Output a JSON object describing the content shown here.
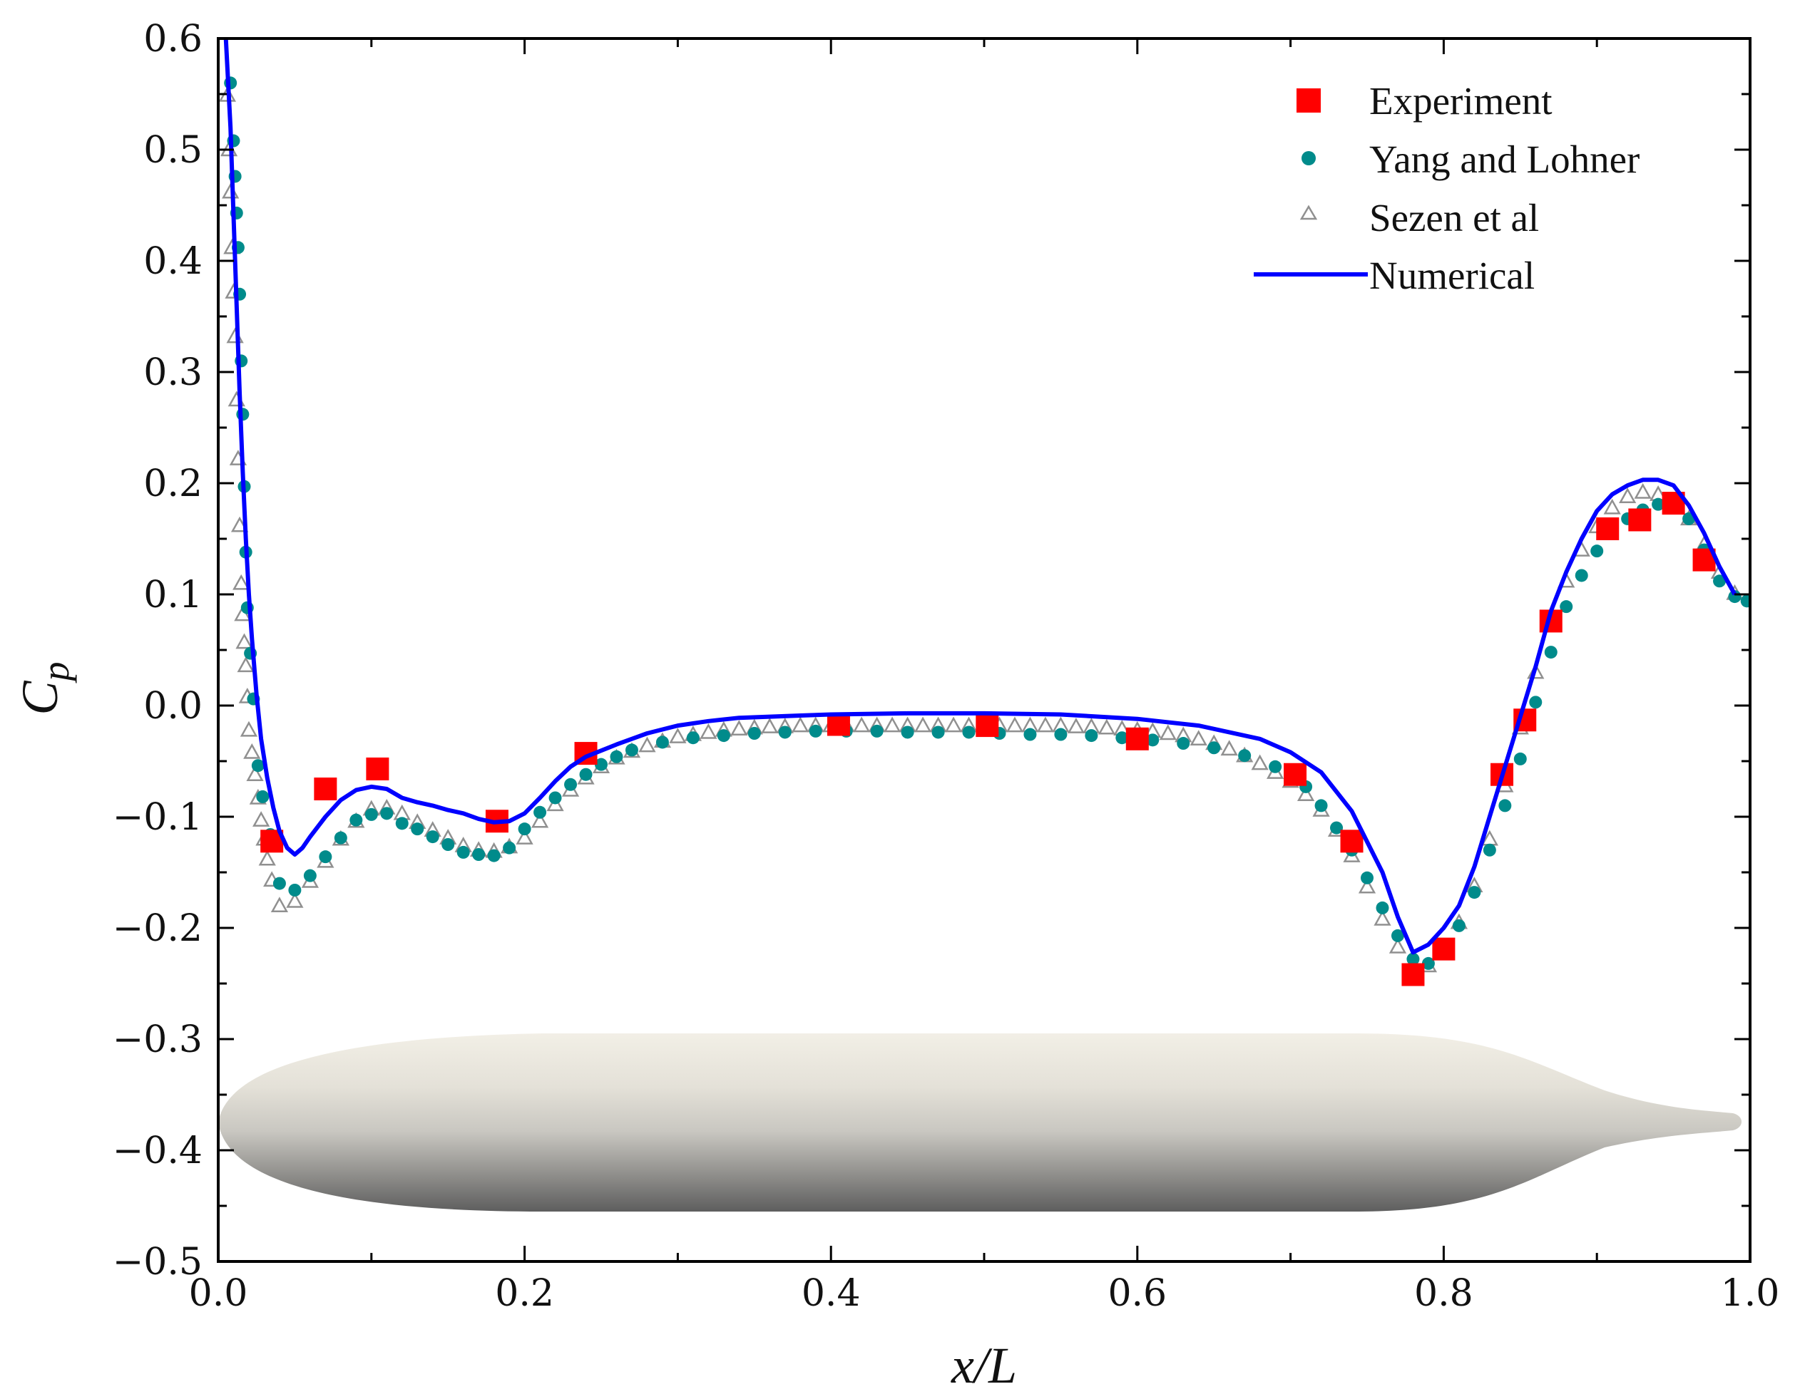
{
  "chart_data": {
    "type": "scatter+line",
    "xlabel": "x/L",
    "ylabel_base": "C",
    "ylabel_sub": "p",
    "xlim": [
      0.0,
      1.0
    ],
    "ylim": [
      -0.5,
      0.6
    ],
    "xticks": [
      0.0,
      0.2,
      0.4,
      0.6,
      0.8,
      1.0
    ],
    "xtick_labels": [
      "0.0",
      "0.2",
      "0.4",
      "0.6",
      "0.8",
      "1.0"
    ],
    "yticks": [
      0.6,
      0.5,
      0.4,
      0.3,
      0.2,
      0.1,
      0.0,
      -0.1,
      -0.2,
      -0.3,
      -0.4,
      -0.5
    ],
    "ytick_labels": [
      "0.6",
      "0.5",
      "0.4",
      "0.3",
      "0.2",
      "0.1",
      "0.0",
      "−0.1",
      "−0.2",
      "−0.3",
      "−0.4",
      "−0.5"
    ],
    "legend_position": "top-right",
    "series": [
      {
        "name": "Experiment",
        "marker": "square",
        "color": "#ff0000",
        "x": [
          0.035,
          0.07,
          0.104,
          0.182,
          0.24,
          0.405,
          0.502,
          0.6,
          0.703,
          0.74,
          0.78,
          0.8,
          0.838,
          0.853,
          0.87,
          0.907,
          0.928,
          0.95,
          0.97
        ],
        "y": [
          -0.122,
          -0.075,
          -0.057,
          -0.104,
          -0.043,
          -0.017,
          -0.018,
          -0.03,
          -0.062,
          -0.122,
          -0.242,
          -0.219,
          -0.062,
          -0.013,
          0.076,
          0.159,
          0.167,
          0.182,
          0.131
        ]
      },
      {
        "name": "Yang and Lohner",
        "marker": "circle",
        "color": "#008b8b",
        "x": [
          0.008,
          0.01,
          0.011,
          0.012,
          0.013,
          0.014,
          0.015,
          0.016,
          0.017,
          0.018,
          0.019,
          0.021,
          0.023,
          0.026,
          0.029,
          0.034,
          0.04,
          0.05,
          0.06,
          0.07,
          0.08,
          0.09,
          0.1,
          0.11,
          0.12,
          0.13,
          0.14,
          0.15,
          0.16,
          0.17,
          0.18,
          0.19,
          0.2,
          0.21,
          0.22,
          0.23,
          0.24,
          0.25,
          0.26,
          0.27,
          0.29,
          0.31,
          0.33,
          0.35,
          0.37,
          0.39,
          0.41,
          0.43,
          0.45,
          0.47,
          0.49,
          0.51,
          0.53,
          0.55,
          0.57,
          0.59,
          0.61,
          0.63,
          0.65,
          0.67,
          0.69,
          0.7,
          0.71,
          0.72,
          0.73,
          0.74,
          0.75,
          0.76,
          0.77,
          0.78,
          0.79,
          0.8,
          0.81,
          0.82,
          0.83,
          0.84,
          0.85,
          0.86,
          0.87,
          0.88,
          0.89,
          0.9,
          0.91,
          0.92,
          0.93,
          0.94,
          0.95,
          0.96,
          0.97,
          0.98,
          0.99,
          0.998
        ],
        "y": [
          0.56,
          0.508,
          0.476,
          0.443,
          0.412,
          0.37,
          0.31,
          0.262,
          0.197,
          0.138,
          0.088,
          0.047,
          0.006,
          -0.054,
          -0.082,
          -0.116,
          -0.16,
          -0.166,
          -0.153,
          -0.136,
          -0.119,
          -0.103,
          -0.098,
          -0.097,
          -0.106,
          -0.111,
          -0.118,
          -0.125,
          -0.132,
          -0.134,
          -0.135,
          -0.128,
          -0.111,
          -0.096,
          -0.083,
          -0.071,
          -0.062,
          -0.053,
          -0.046,
          -0.04,
          -0.033,
          -0.029,
          -0.027,
          -0.025,
          -0.024,
          -0.023,
          -0.023,
          -0.023,
          -0.024,
          -0.024,
          -0.024,
          -0.025,
          -0.026,
          -0.026,
          -0.027,
          -0.029,
          -0.031,
          -0.034,
          -0.038,
          -0.045,
          -0.055,
          -0.062,
          -0.073,
          -0.09,
          -0.11,
          -0.13,
          -0.155,
          -0.182,
          -0.207,
          -0.228,
          -0.232,
          -0.222,
          -0.198,
          -0.168,
          -0.13,
          -0.09,
          -0.048,
          0.003,
          0.048,
          0.089,
          0.117,
          0.139,
          0.156,
          0.168,
          0.176,
          0.181,
          0.18,
          0.168,
          0.14,
          0.112,
          0.098,
          0.094
        ]
      },
      {
        "name": "Sezen et al",
        "marker": "triangle-open",
        "color": "#909090",
        "x": [
          0.006,
          0.007,
          0.008,
          0.009,
          0.01,
          0.011,
          0.012,
          0.013,
          0.014,
          0.015,
          0.016,
          0.017,
          0.018,
          0.019,
          0.02,
          0.022,
          0.024,
          0.026,
          0.028,
          0.03,
          0.032,
          0.035,
          0.04,
          0.05,
          0.06,
          0.07,
          0.08,
          0.09,
          0.1,
          0.11,
          0.12,
          0.13,
          0.14,
          0.15,
          0.16,
          0.17,
          0.18,
          0.19,
          0.2,
          0.21,
          0.22,
          0.23,
          0.24,
          0.25,
          0.26,
          0.27,
          0.28,
          0.29,
          0.3,
          0.31,
          0.32,
          0.33,
          0.34,
          0.35,
          0.36,
          0.37,
          0.38,
          0.39,
          0.4,
          0.41,
          0.42,
          0.43,
          0.44,
          0.45,
          0.46,
          0.47,
          0.48,
          0.49,
          0.5,
          0.51,
          0.52,
          0.53,
          0.54,
          0.55,
          0.56,
          0.57,
          0.58,
          0.59,
          0.6,
          0.61,
          0.62,
          0.63,
          0.64,
          0.65,
          0.66,
          0.67,
          0.68,
          0.69,
          0.7,
          0.71,
          0.72,
          0.73,
          0.74,
          0.75,
          0.76,
          0.77,
          0.78,
          0.79,
          0.8,
          0.81,
          0.82,
          0.83,
          0.84,
          0.85,
          0.86,
          0.87,
          0.88,
          0.89,
          0.9,
          0.91,
          0.92,
          0.93,
          0.94,
          0.95,
          0.96,
          0.97,
          0.98,
          0.99
        ],
        "y": [
          0.549,
          0.5,
          0.462,
          0.412,
          0.372,
          0.332,
          0.275,
          0.222,
          0.162,
          0.11,
          0.082,
          0.057,
          0.036,
          0.008,
          -0.022,
          -0.042,
          -0.062,
          -0.083,
          -0.103,
          -0.12,
          -0.138,
          -0.157,
          -0.18,
          -0.176,
          -0.158,
          -0.14,
          -0.12,
          -0.104,
          -0.093,
          -0.092,
          -0.097,
          -0.105,
          -0.112,
          -0.119,
          -0.126,
          -0.13,
          -0.131,
          -0.127,
          -0.119,
          -0.104,
          -0.089,
          -0.076,
          -0.065,
          -0.055,
          -0.047,
          -0.041,
          -0.036,
          -0.032,
          -0.028,
          -0.026,
          -0.024,
          -0.022,
          -0.021,
          -0.02,
          -0.019,
          -0.019,
          -0.018,
          -0.018,
          -0.018,
          -0.018,
          -0.018,
          -0.018,
          -0.018,
          -0.018,
          -0.018,
          -0.018,
          -0.018,
          -0.018,
          -0.018,
          -0.018,
          -0.018,
          -0.018,
          -0.018,
          -0.018,
          -0.019,
          -0.019,
          -0.02,
          -0.021,
          -0.022,
          -0.023,
          -0.025,
          -0.027,
          -0.03,
          -0.034,
          -0.039,
          -0.045,
          -0.052,
          -0.06,
          -0.068,
          -0.08,
          -0.094,
          -0.112,
          -0.135,
          -0.163,
          -0.192,
          -0.217,
          -0.233,
          -0.234,
          -0.22,
          -0.195,
          -0.162,
          -0.12,
          -0.072,
          -0.02,
          0.03,
          0.076,
          0.112,
          0.14,
          0.161,
          0.178,
          0.188,
          0.192,
          0.19,
          0.183,
          0.168,
          0.145,
          0.12,
          0.101
        ]
      },
      {
        "name": "Numerical",
        "marker": "line",
        "color": "#0000ff",
        "x": [
          0.005,
          0.008,
          0.01,
          0.012,
          0.014,
          0.016,
          0.018,
          0.02,
          0.022,
          0.025,
          0.028,
          0.032,
          0.036,
          0.04,
          0.045,
          0.05,
          0.055,
          0.06,
          0.07,
          0.08,
          0.09,
          0.1,
          0.11,
          0.12,
          0.13,
          0.14,
          0.15,
          0.16,
          0.17,
          0.18,
          0.19,
          0.2,
          0.21,
          0.22,
          0.23,
          0.24,
          0.26,
          0.28,
          0.3,
          0.32,
          0.34,
          0.36,
          0.38,
          0.4,
          0.45,
          0.5,
          0.55,
          0.6,
          0.64,
          0.68,
          0.7,
          0.72,
          0.74,
          0.76,
          0.77,
          0.78,
          0.79,
          0.8,
          0.81,
          0.82,
          0.83,
          0.84,
          0.85,
          0.86,
          0.87,
          0.88,
          0.89,
          0.9,
          0.91,
          0.92,
          0.93,
          0.94,
          0.95,
          0.96,
          0.97,
          0.98,
          0.99
        ],
        "y": [
          0.6,
          0.52,
          0.44,
          0.36,
          0.28,
          0.21,
          0.15,
          0.1,
          0.06,
          0.01,
          -0.03,
          -0.065,
          -0.092,
          -0.113,
          -0.128,
          -0.134,
          -0.128,
          -0.118,
          -0.1,
          -0.085,
          -0.076,
          -0.073,
          -0.075,
          -0.083,
          -0.087,
          -0.09,
          -0.094,
          -0.097,
          -0.102,
          -0.105,
          -0.104,
          -0.097,
          -0.083,
          -0.068,
          -0.055,
          -0.046,
          -0.035,
          -0.025,
          -0.018,
          -0.014,
          -0.011,
          -0.01,
          -0.009,
          -0.008,
          -0.007,
          -0.007,
          -0.008,
          -0.012,
          -0.018,
          -0.03,
          -0.042,
          -0.06,
          -0.095,
          -0.15,
          -0.19,
          -0.222,
          -0.215,
          -0.2,
          -0.18,
          -0.145,
          -0.1,
          -0.055,
          -0.01,
          0.035,
          0.085,
          0.12,
          0.15,
          0.175,
          0.19,
          0.198,
          0.203,
          0.203,
          0.198,
          0.18,
          0.155,
          0.125,
          0.1
        ]
      }
    ]
  }
}
